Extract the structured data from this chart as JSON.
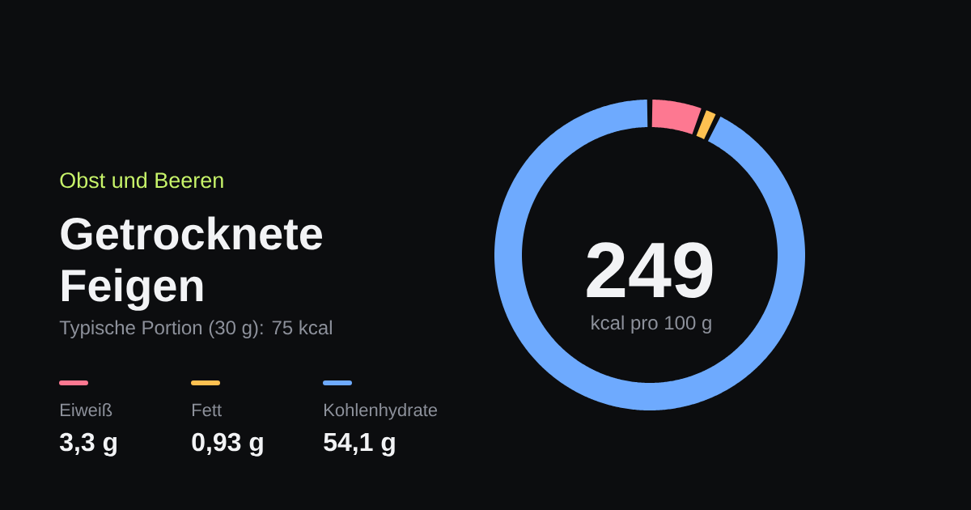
{
  "chart_data": {
    "type": "donut",
    "title": "Getrocknete Feigen",
    "subtitle": "Obst und Beeren",
    "categories": [
      "Eiweiß",
      "Fett",
      "Kohlenhydrate"
    ],
    "values": [
      3.3,
      0.93,
      54.1
    ],
    "colors": [
      "#fd7891",
      "#fec151",
      "#6eaafe"
    ],
    "value_labels": [
      "3,3 g",
      "0,93 g",
      "54,1 g"
    ],
    "legend": "left",
    "annotations": [
      "Typische Portion (30 g): 75 kcal",
      "249",
      "kcal pro 100 g"
    ]
  }
}
